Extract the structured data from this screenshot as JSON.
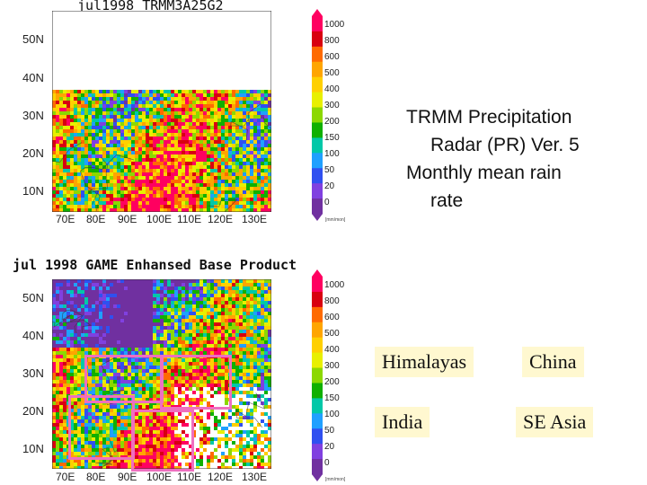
{
  "top_panel": {
    "title": "jul1998  TRMM3A25G2",
    "lat_labels": [
      "50N",
      "40N",
      "30N",
      "20N",
      "10N"
    ],
    "lon_labels": [
      "70E",
      "80E",
      "90E",
      "100E",
      "110E",
      "120E",
      "130E"
    ],
    "colorbar": {
      "labels": [
        "1000",
        "800",
        "600",
        "500",
        "400",
        "300",
        "200",
        "150",
        "100",
        "50",
        "20",
        "0"
      ],
      "units": "[mm/mon]"
    }
  },
  "bottom_panel": {
    "title": "jul 1998 GAME Enhansed Base Product",
    "lat_labels": [
      "50N",
      "40N",
      "30N",
      "20N",
      "10N"
    ],
    "lon_labels": [
      "70E",
      "80E",
      "90E",
      "100E",
      "110E",
      "120E",
      "130E"
    ],
    "colorbar": {
      "labels": [
        "1000",
        "800",
        "600",
        "500",
        "400",
        "300",
        "200",
        "150",
        "100",
        "50",
        "20",
        "0"
      ],
      "units": "[mm/mon]"
    }
  },
  "caption": {
    "line1": "TRMM Precipitation",
    "line2": "Radar (PR) Ver. 5",
    "line3": "Monthly mean rain",
    "line4": "rate"
  },
  "regions": {
    "himalayas": "Himalayas",
    "china": "China",
    "india": "India",
    "se_asia": "SE Asia"
  },
  "colors": {
    "box_outline": "#ee6fc0",
    "region_label_bg": "#fff8d0",
    "colorbar_scale": [
      "#ff0060",
      "#d80010",
      "#ff6a00",
      "#ffa500",
      "#ffd000",
      "#e8f000",
      "#8cd800",
      "#10b000",
      "#00c8a8",
      "#20a0ff",
      "#3050f0",
      "#8040e0",
      "#7030a0"
    ]
  }
}
